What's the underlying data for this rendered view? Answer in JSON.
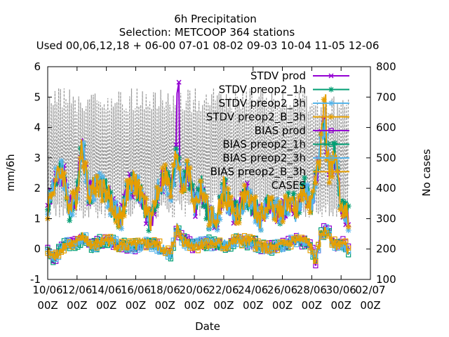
{
  "chart_data": {
    "type": "line",
    "title": "6h Precipitation",
    "subtitle": "Selection: METCOOP    364 stations",
    "subtitle2": "Used  00,06,12,18 + 06-00 07-01 08-02 09-03 10-04 11-05 12-06",
    "xlabel": "Date",
    "ylabel": "mm/6h",
    "y2label": "No cases",
    "ylim": [
      -1,
      6
    ],
    "y2lim": [
      100,
      800
    ],
    "yticks": [
      "-1",
      "0",
      "1",
      "2",
      "3",
      "4",
      "5",
      "6"
    ],
    "y2ticks": [
      "100",
      "200",
      "300",
      "400",
      "500",
      "600",
      "700",
      "800"
    ],
    "xlim_days": [
      10,
      32
    ],
    "xticks": [
      {
        "day": 10,
        "label": "10/06",
        "label2": "00Z"
      },
      {
        "day": 12,
        "label": "12/06",
        "label2": "00Z"
      },
      {
        "day": 14,
        "label": "14/06",
        "label2": "00Z"
      },
      {
        "day": 16,
        "label": "16/06",
        "label2": "00Z"
      },
      {
        "day": 18,
        "label": "18/06",
        "label2": "00Z"
      },
      {
        "day": 20,
        "label": "20/06",
        "label2": "00Z"
      },
      {
        "day": 22,
        "label": "22/06",
        "label2": "00Z"
      },
      {
        "day": 24,
        "label": "24/06",
        "label2": "00Z"
      },
      {
        "day": 26,
        "label": "26/06",
        "label2": "00Z"
      },
      {
        "day": 28,
        "label": "28/06",
        "label2": "00Z"
      },
      {
        "day": 30,
        "label": "30/06",
        "label2": "00Z"
      },
      {
        "day": 32,
        "label": "02/07",
        "label2": "00Z"
      }
    ],
    "data_range_days": [
      10,
      30.5
    ],
    "series": [
      {
        "name": "STDV prod",
        "color": "#9400d3",
        "marker": "x",
        "dash": false,
        "kind": "stdv",
        "axis": "y1",
        "seed": 1
      },
      {
        "name": "STDV preop2_1h",
        "color": "#009e73",
        "marker": "star",
        "dash": false,
        "kind": "stdv",
        "axis": "y1",
        "seed": 2
      },
      {
        "name": "STDV preop2_3h",
        "color": "#56b4e9",
        "marker": "star",
        "dash": false,
        "kind": "stdv",
        "axis": "y1",
        "seed": 3
      },
      {
        "name": "STDV preop2_B_3h",
        "color": "#e69f00",
        "marker": "star",
        "dash": false,
        "kind": "stdv",
        "axis": "y1",
        "seed": 4
      },
      {
        "name": "BIAS prod",
        "color": "#9400d3",
        "marker": "square",
        "dash": false,
        "kind": "bias",
        "axis": "y1",
        "seed": 5
      },
      {
        "name": "BIAS preop2_1h",
        "color": "#009e73",
        "marker": "square",
        "dash": false,
        "kind": "bias",
        "axis": "y1",
        "seed": 6
      },
      {
        "name": "BIAS preop2_3h",
        "color": "#56b4e9",
        "marker": "square",
        "dash": false,
        "kind": "bias",
        "axis": "y1",
        "seed": 7
      },
      {
        "name": "BIAS preop2_B_3h",
        "color": "#e69f00",
        "marker": "square",
        "dash": false,
        "kind": "bias",
        "axis": "y1",
        "seed": 8
      },
      {
        "name": "CASES",
        "color": "#999999",
        "marker": "none",
        "dash": true,
        "kind": "cases",
        "axis": "y2",
        "seed": 9
      }
    ],
    "stdv_anchor_values": [
      [
        10.0,
        1.4
      ],
      [
        10.5,
        2.2
      ],
      [
        11.0,
        2.6
      ],
      [
        11.5,
        1.3
      ],
      [
        12.0,
        1.8
      ],
      [
        12.3,
        3.5
      ],
      [
        12.8,
        1.9
      ],
      [
        13.5,
        2.1
      ],
      [
        14.0,
        1.9
      ],
      [
        14.5,
        1.3
      ],
      [
        15.0,
        1.0
      ],
      [
        15.5,
        2.0
      ],
      [
        16.0,
        2.2
      ],
      [
        16.5,
        1.6
      ],
      [
        17.0,
        0.8
      ],
      [
        17.5,
        1.9
      ],
      [
        18.0,
        2.5
      ],
      [
        18.4,
        1.8
      ],
      [
        18.8,
        3.3
      ],
      [
        19.2,
        2.0
      ],
      [
        19.6,
        2.6
      ],
      [
        20.0,
        1.4
      ],
      [
        20.5,
        2.0
      ],
      [
        21.0,
        1.1
      ],
      [
        21.5,
        0.8
      ],
      [
        22.0,
        2.0
      ],
      [
        22.5,
        1.3
      ],
      [
        23.0,
        1.2
      ],
      [
        23.5,
        1.8
      ],
      [
        24.0,
        1.4
      ],
      [
        24.5,
        1.0
      ],
      [
        25.0,
        1.5
      ],
      [
        25.5,
        1.3
      ],
      [
        26.0,
        1.2
      ],
      [
        26.5,
        1.6
      ],
      [
        27.0,
        1.2
      ],
      [
        27.5,
        2.0
      ],
      [
        28.0,
        1.5
      ],
      [
        28.5,
        2.8
      ],
      [
        28.8,
        4.2
      ],
      [
        29.2,
        2.6
      ],
      [
        29.6,
        3.1
      ],
      [
        30.0,
        1.4
      ],
      [
        30.5,
        1.0
      ]
    ],
    "stdv_prod_peak": {
      "day": 18.9,
      "value": 5.8
    },
    "bias_anchor_values": [
      [
        10.0,
        -0.1
      ],
      [
        10.5,
        -0.3
      ],
      [
        11.0,
        0.1
      ],
      [
        12.0,
        0.2
      ],
      [
        12.4,
        0.4
      ],
      [
        13.0,
        0.1
      ],
      [
        14.0,
        0.3
      ],
      [
        15.0,
        0.1
      ],
      [
        16.0,
        0.1
      ],
      [
        17.0,
        0.2
      ],
      [
        18.0,
        0.0
      ],
      [
        18.4,
        -0.2
      ],
      [
        18.8,
        0.7
      ],
      [
        19.2,
        0.3
      ],
      [
        20.0,
        0.1
      ],
      [
        21.0,
        0.2
      ],
      [
        22.0,
        0.1
      ],
      [
        23.0,
        0.3
      ],
      [
        24.0,
        0.2
      ],
      [
        25.0,
        0.0
      ],
      [
        26.0,
        0.1
      ],
      [
        27.0,
        0.3
      ],
      [
        27.8,
        0.2
      ],
      [
        28.3,
        -0.4
      ],
      [
        28.7,
        0.6
      ],
      [
        29.2,
        0.5
      ],
      [
        29.6,
        0.1
      ],
      [
        30.0,
        0.2
      ],
      [
        30.5,
        0.0
      ]
    ],
    "cases_range": [
      320,
      730
    ]
  }
}
